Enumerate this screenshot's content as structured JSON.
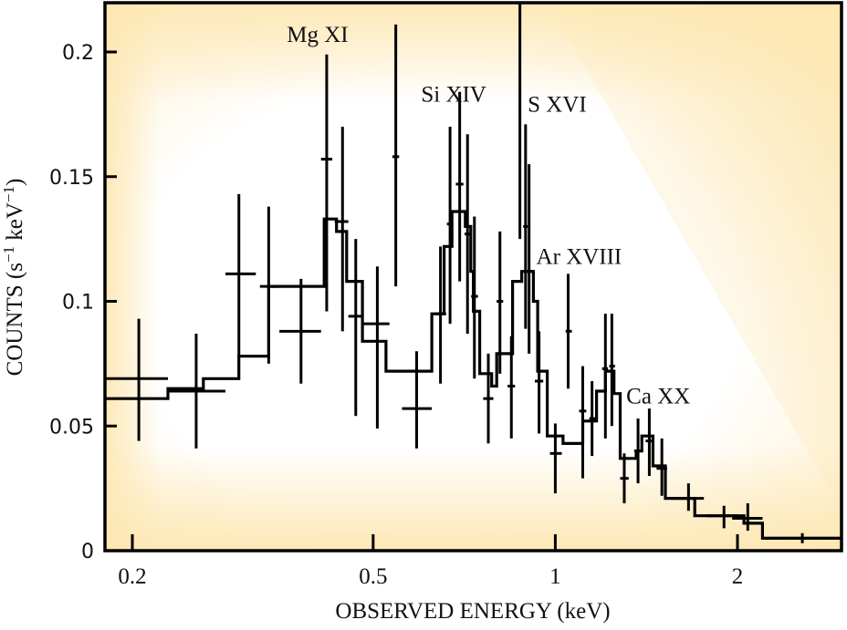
{
  "chart_data": {
    "type": "scatter",
    "title": "",
    "xlabel": "OBSERVED ENERGY (keV)",
    "ylabel_parts": [
      "COUNTS (s",
      "−1",
      " keV",
      "−1",
      ")"
    ],
    "ylabel": "COUNTS (s⁻¹ keV⁻¹)",
    "xscale": "log",
    "xlim": [
      0.18,
      3.0
    ],
    "ylim": [
      0,
      0.22
    ],
    "x_ticks": [
      {
        "value": 0.2,
        "label": "0.2"
      },
      {
        "value": 0.5,
        "label": "0.5"
      },
      {
        "value": 1,
        "label": "1"
      },
      {
        "value": 2,
        "label": "2"
      }
    ],
    "y_ticks": [
      {
        "value": 0,
        "label": "0"
      },
      {
        "value": 0.05,
        "label": "0.05"
      },
      {
        "value": 0.1,
        "label": "0.1"
      },
      {
        "value": 0.15,
        "label": "0.15"
      },
      {
        "value": 0.2,
        "label": "0.2"
      }
    ],
    "grid": false,
    "legend": "none",
    "annotations": [
      {
        "text": "Mg XI",
        "energy": 0.36,
        "count": 0.204
      },
      {
        "text": "Si XIV",
        "energy": 0.6,
        "count": 0.18
      },
      {
        "text": "S XVI",
        "energy": 0.9,
        "count": 0.176
      },
      {
        "text": "Ar XVIII",
        "energy": 0.93,
        "count": 0.115
      },
      {
        "text": "Ca XX",
        "energy": 1.31,
        "count": 0.059
      }
    ],
    "series": [
      {
        "name": "data",
        "style": "crosses with error bars",
        "points": [
          {
            "x": 0.205,
            "xlo": 0.179,
            "xhi": 0.229,
            "y": 0.069,
            "ylo": 0.044,
            "yhi": 0.093
          },
          {
            "x": 0.255,
            "xlo": 0.229,
            "xhi": 0.285,
            "y": 0.064,
            "ylo": 0.041,
            "yhi": 0.087
          },
          {
            "x": 0.3,
            "xlo": 0.285,
            "xhi": 0.32,
            "y": 0.111,
            "ylo": 0.078,
            "yhi": 0.143
          },
          {
            "x": 0.336,
            "xlo": 0.325,
            "xhi": 0.348,
            "y": 0.106,
            "ylo": 0.075,
            "yhi": 0.138
          },
          {
            "x": 0.38,
            "xlo": 0.35,
            "xhi": 0.41,
            "y": 0.088,
            "ylo": 0.067,
            "yhi": 0.109
          },
          {
            "x": 0.419,
            "xlo": 0.41,
            "xhi": 0.428,
            "y": 0.157,
            "ylo": 0.096,
            "yhi": 0.199
          },
          {
            "x": 0.445,
            "xlo": 0.432,
            "xhi": 0.455,
            "y": 0.132,
            "ylo": 0.088,
            "yhi": 0.17
          },
          {
            "x": 0.468,
            "xlo": 0.455,
            "xhi": 0.482,
            "y": 0.094,
            "ylo": 0.054,
            "yhi": 0.125
          },
          {
            "x": 0.508,
            "xlo": 0.482,
            "xhi": 0.532,
            "y": 0.091,
            "ylo": 0.049,
            "yhi": 0.114
          },
          {
            "x": 0.545,
            "xlo": 0.538,
            "xhi": 0.552,
            "y": 0.158,
            "ylo": 0.106,
            "yhi": 0.211
          },
          {
            "x": 0.59,
            "xlo": 0.558,
            "xhi": 0.625,
            "y": 0.057,
            "ylo": 0.041,
            "yhi": 0.08
          },
          {
            "x": 0.646,
            "xlo": 0.63,
            "xhi": 0.66,
            "y": 0.095,
            "ylo": 0.067,
            "yhi": 0.122
          },
          {
            "x": 0.67,
            "xlo": 0.662,
            "xhi": 0.678,
            "y": 0.131,
            "ylo": 0.091,
            "yhi": 0.17
          },
          {
            "x": 0.695,
            "xlo": 0.685,
            "xhi": 0.705,
            "y": 0.147,
            "ylo": 0.108,
            "yhi": 0.184
          },
          {
            "x": 0.716,
            "xlo": 0.708,
            "xhi": 0.724,
            "y": 0.127,
            "ylo": 0.087,
            "yhi": 0.167
          },
          {
            "x": 0.735,
            "xlo": 0.726,
            "xhi": 0.745,
            "y": 0.102,
            "ylo": 0.069,
            "yhi": 0.134
          },
          {
            "x": 0.775,
            "xlo": 0.76,
            "xhi": 0.79,
            "y": 0.061,
            "ylo": 0.043,
            "yhi": 0.079
          },
          {
            "x": 0.81,
            "xlo": 0.8,
            "xhi": 0.82,
            "y": 0.1,
            "ylo": 0.071,
            "yhi": 0.128
          },
          {
            "x": 0.846,
            "xlo": 0.834,
            "xhi": 0.858,
            "y": 0.066,
            "ylo": 0.045,
            "yhi": 0.086
          },
          {
            "x": 0.874,
            "xlo": 0.87,
            "xhi": 0.878,
            "y": 0.179,
            "ylo": 0.125,
            "yhi": 0.22
          },
          {
            "x": 0.893,
            "xlo": 0.885,
            "xhi": 0.9,
            "y": 0.13,
            "ylo": 0.089,
            "yhi": 0.171
          },
          {
            "x": 0.905,
            "xlo": 0.895,
            "xhi": 0.918,
            "y": 0.112,
            "ylo": 0.079,
            "yhi": 0.155
          },
          {
            "x": 0.94,
            "xlo": 0.925,
            "xhi": 0.955,
            "y": 0.068,
            "ylo": 0.047,
            "yhi": 0.088
          },
          {
            "x": 1.0,
            "xlo": 0.98,
            "xhi": 1.025,
            "y": 0.039,
            "ylo": 0.023,
            "yhi": 0.051
          },
          {
            "x": 1.05,
            "xlo": 1.04,
            "xhi": 1.065,
            "y": 0.088,
            "ylo": 0.065,
            "yhi": 0.111
          },
          {
            "x": 1.11,
            "xlo": 1.095,
            "xhi": 1.125,
            "y": 0.056,
            "ylo": 0.029,
            "yhi": 0.074
          },
          {
            "x": 1.15,
            "xlo": 1.138,
            "xhi": 1.165,
            "y": 0.053,
            "ylo": 0.038,
            "yhi": 0.068
          },
          {
            "x": 1.21,
            "xlo": 1.195,
            "xhi": 1.222,
            "y": 0.073,
            "ylo": 0.045,
            "yhi": 0.095
          },
          {
            "x": 1.24,
            "xlo": 1.228,
            "xhi": 1.255,
            "y": 0.074,
            "ylo": 0.05,
            "yhi": 0.095
          },
          {
            "x": 1.3,
            "xlo": 1.28,
            "xhi": 1.322,
            "y": 0.029,
            "ylo": 0.019,
            "yhi": 0.039
          },
          {
            "x": 1.37,
            "xlo": 1.35,
            "xhi": 1.39,
            "y": 0.04,
            "ylo": 0.027,
            "yhi": 0.053
          },
          {
            "x": 1.43,
            "xlo": 1.41,
            "xhi": 1.45,
            "y": 0.044,
            "ylo": 0.03,
            "yhi": 0.057
          },
          {
            "x": 1.5,
            "xlo": 1.47,
            "xhi": 1.53,
            "y": 0.033,
            "ylo": 0.022,
            "yhi": 0.045
          },
          {
            "x": 1.66,
            "xlo": 1.56,
            "xhi": 1.76,
            "y": 0.021,
            "ylo": 0.016,
            "yhi": 0.027
          },
          {
            "x": 1.9,
            "xlo": 1.78,
            "xhi": 2.0,
            "y": 0.014,
            "ylo": 0.009,
            "yhi": 0.018
          },
          {
            "x": 2.08,
            "xlo": 1.96,
            "xhi": 2.2,
            "y": 0.013,
            "ylo": 0.008,
            "yhi": 0.019
          },
          {
            "x": 2.56,
            "xlo": 2.2,
            "xhi": 3.0,
            "y": 0.005,
            "ylo": 0.003,
            "yhi": 0.007
          }
        ]
      },
      {
        "name": "model",
        "style": "step histogram",
        "steps": [
          {
            "xlo": 0.179,
            "xhi": 0.229,
            "y": 0.061
          },
          {
            "xlo": 0.229,
            "xhi": 0.262,
            "y": 0.065
          },
          {
            "xlo": 0.262,
            "xhi": 0.3,
            "y": 0.069
          },
          {
            "xlo": 0.3,
            "xhi": 0.336,
            "y": 0.078
          },
          {
            "xlo": 0.336,
            "xhi": 0.415,
            "y": 0.106
          },
          {
            "xlo": 0.415,
            "xhi": 0.435,
            "y": 0.133
          },
          {
            "xlo": 0.435,
            "xhi": 0.452,
            "y": 0.128
          },
          {
            "xlo": 0.452,
            "xhi": 0.48,
            "y": 0.108
          },
          {
            "xlo": 0.48,
            "xhi": 0.525,
            "y": 0.084
          },
          {
            "xlo": 0.525,
            "xhi": 0.625,
            "y": 0.072
          },
          {
            "xlo": 0.625,
            "xhi": 0.655,
            "y": 0.095
          },
          {
            "xlo": 0.655,
            "xhi": 0.675,
            "y": 0.122
          },
          {
            "xlo": 0.675,
            "xhi": 0.71,
            "y": 0.136
          },
          {
            "xlo": 0.71,
            "xhi": 0.725,
            "y": 0.13
          },
          {
            "xlo": 0.725,
            "xhi": 0.732,
            "y": 0.112
          },
          {
            "xlo": 0.732,
            "xhi": 0.75,
            "y": 0.096
          },
          {
            "xlo": 0.75,
            "xhi": 0.785,
            "y": 0.071
          },
          {
            "xlo": 0.785,
            "xhi": 0.8,
            "y": 0.066
          },
          {
            "xlo": 0.8,
            "xhi": 0.85,
            "y": 0.079
          },
          {
            "xlo": 0.85,
            "xhi": 0.88,
            "y": 0.108
          },
          {
            "xlo": 0.88,
            "xhi": 0.92,
            "y": 0.112
          },
          {
            "xlo": 0.92,
            "xhi": 0.935,
            "y": 0.1
          },
          {
            "xlo": 0.935,
            "xhi": 0.97,
            "y": 0.072
          },
          {
            "xlo": 0.97,
            "xhi": 1.03,
            "y": 0.046
          },
          {
            "xlo": 1.03,
            "xhi": 1.11,
            "y": 0.043
          },
          {
            "xlo": 1.11,
            "xhi": 1.17,
            "y": 0.052
          },
          {
            "xlo": 1.17,
            "xhi": 1.21,
            "y": 0.064
          },
          {
            "xlo": 1.21,
            "xhi": 1.25,
            "y": 0.072
          },
          {
            "xlo": 1.25,
            "xhi": 1.28,
            "y": 0.063
          },
          {
            "xlo": 1.28,
            "xhi": 1.36,
            "y": 0.037
          },
          {
            "xlo": 1.36,
            "xhi": 1.39,
            "y": 0.04
          },
          {
            "xlo": 1.39,
            "xhi": 1.45,
            "y": 0.046
          },
          {
            "xlo": 1.45,
            "xhi": 1.52,
            "y": 0.034
          },
          {
            "xlo": 1.52,
            "xhi": 1.7,
            "y": 0.021
          },
          {
            "xlo": 1.7,
            "xhi": 2.05,
            "y": 0.014
          },
          {
            "xlo": 2.05,
            "xhi": 2.2,
            "y": 0.011
          },
          {
            "xlo": 2.2,
            "xhi": 3.0,
            "y": 0.005
          }
        ]
      }
    ]
  },
  "style": {
    "background_warm": "#fde7b3",
    "background_light": "#ffffff",
    "ink": "#000000"
  }
}
